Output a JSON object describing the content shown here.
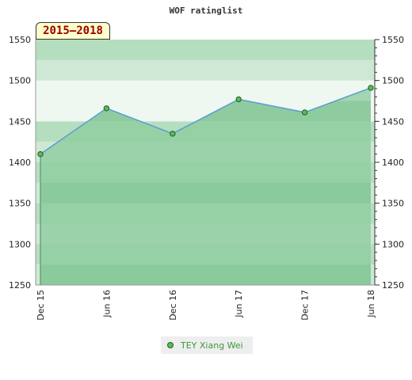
{
  "chart_data": {
    "type": "area",
    "title": "WOF ratinglist",
    "period_label": "2015—2018",
    "categories": [
      "Dec 15",
      "Jun 16",
      "Dec 16",
      "Jun 17",
      "Dec 17",
      "Jun 18"
    ],
    "series": [
      {
        "name": "TEY Xiang Wei",
        "values": [
          1410,
          1466,
          1435,
          1477,
          1461,
          1491
        ]
      }
    ],
    "ylim": [
      1250,
      1550
    ],
    "y_ticks": [
      1250,
      1300,
      1350,
      1400,
      1450,
      1500,
      1550
    ],
    "y_axis_both_sides": true,
    "grid": true,
    "legend_position": "bottom",
    "colors": {
      "area_fill": "#8dcc9e",
      "line": "#5b9bd5",
      "marker_fill": "#5cb85c",
      "marker_stroke": "#1f5f1f",
      "band_light": "#cfe8d6",
      "band_mid": "#b5debf",
      "band_highlight": "#eef7f0"
    }
  }
}
